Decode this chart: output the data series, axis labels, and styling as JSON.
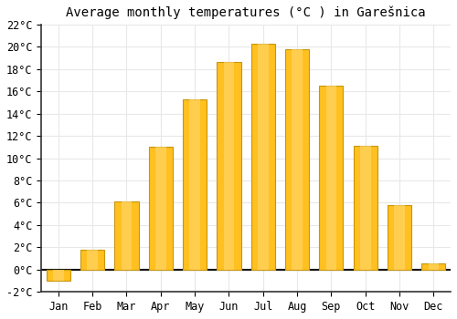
{
  "title": "Average monthly temperatures (°C ) in Garešnica",
  "months": [
    "Jan",
    "Feb",
    "Mar",
    "Apr",
    "May",
    "Jun",
    "Jul",
    "Aug",
    "Sep",
    "Oct",
    "Nov",
    "Dec"
  ],
  "values": [
    -1.0,
    1.8,
    6.1,
    11.0,
    15.3,
    18.6,
    20.3,
    19.8,
    16.5,
    11.1,
    5.8,
    0.6
  ],
  "bar_color_face": "#FFC020",
  "bar_color_edge": "#C8960C",
  "ylim": [
    -2,
    22
  ],
  "yticks": [
    -2,
    0,
    2,
    4,
    6,
    8,
    10,
    12,
    14,
    16,
    18,
    20,
    22
  ],
  "ytick_labels": [
    "-2°C",
    "0°C",
    "2°C",
    "4°C",
    "6°C",
    "8°C",
    "10°C",
    "12°C",
    "14°C",
    "16°C",
    "18°C",
    "20°C",
    "22°C"
  ],
  "background_color": "#ffffff",
  "plot_bg_color": "#ffffff",
  "grid_color": "#e8e8e8",
  "title_fontsize": 10,
  "tick_fontsize": 8.5,
  "bar_width": 0.7
}
